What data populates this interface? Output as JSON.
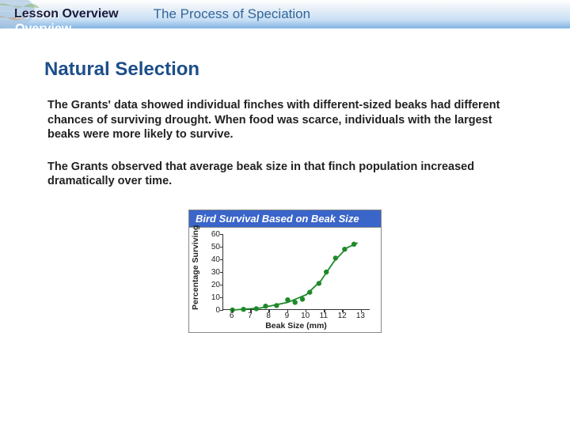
{
  "header": {
    "lesson_label": "Lesson Overview",
    "page_title": "The Process of Speciation"
  },
  "section": {
    "title": "Natural Selection",
    "para1": "The Grants' data showed individual finches with different-sized beaks had different chances of surviving drought. When food was scarce, individuals with the largest beaks were more likely to survive.",
    "para2": "The Grants observed that average beak size in that finch population increased dramatically over time."
  },
  "chart": {
    "type": "line-scatter",
    "title": "Bird Survival Based on Beak Size",
    "x_axis_title": "Beak Size (mm)",
    "y_axis_title": "Percentage Surviving",
    "x_labels": [
      "6",
      "7",
      "8",
      "9",
      "10",
      "11",
      "12",
      "13"
    ],
    "y_labels": [
      "60",
      "50",
      "40",
      "30",
      "20",
      "10",
      "0"
    ],
    "ylim": [
      0,
      60
    ],
    "xlim": [
      6,
      13
    ],
    "ytick_step": 10,
    "xtick_step": 1,
    "line_color": "#1f8a2a",
    "marker_color": "#1f8a2a",
    "marker_size": 3.2,
    "line_width": 1.8,
    "background_color": "#ffffff",
    "axis_color": "#333333",
    "points": [
      {
        "x": 6.0,
        "y": 0
      },
      {
        "x": 6.6,
        "y": 0.5
      },
      {
        "x": 7.3,
        "y": 1
      },
      {
        "x": 7.8,
        "y": 3
      },
      {
        "x": 8.4,
        "y": 3.5
      },
      {
        "x": 9.0,
        "y": 8
      },
      {
        "x": 9.4,
        "y": 6
      },
      {
        "x": 9.8,
        "y": 8.5
      },
      {
        "x": 10.2,
        "y": 14
      },
      {
        "x": 10.7,
        "y": 21
      },
      {
        "x": 11.1,
        "y": 30
      },
      {
        "x": 11.6,
        "y": 41
      },
      {
        "x": 12.1,
        "y": 48
      },
      {
        "x": 12.6,
        "y": 52
      }
    ],
    "curve": [
      {
        "x": 6.0,
        "y": 0
      },
      {
        "x": 7.5,
        "y": 1.5
      },
      {
        "x": 9.0,
        "y": 6
      },
      {
        "x": 10.0,
        "y": 12
      },
      {
        "x": 10.8,
        "y": 23
      },
      {
        "x": 11.5,
        "y": 38
      },
      {
        "x": 12.2,
        "y": 49
      },
      {
        "x": 12.8,
        "y": 53
      }
    ]
  }
}
